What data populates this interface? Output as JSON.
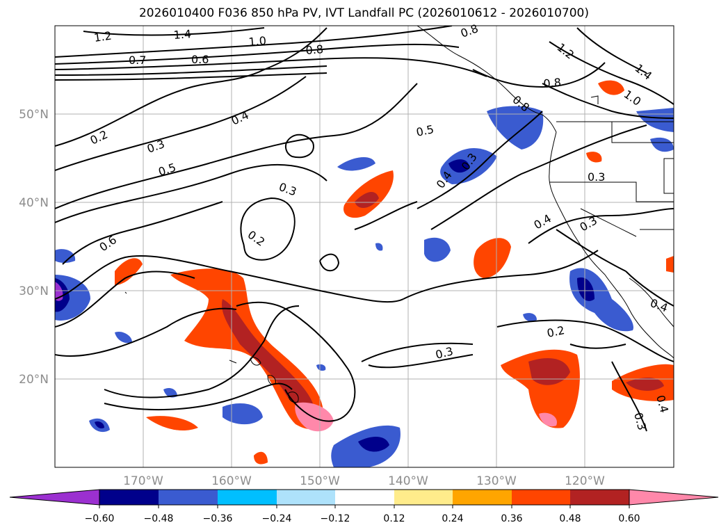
{
  "title": "2026010400 F036 850 hPa PV, IVT Landfall PC (2026010612 - 2026010700)",
  "lat_labels": [
    "50°N",
    "40°N",
    "30°N",
    "20°N"
  ],
  "lon_labels": [
    "170°W",
    "160°W",
    "150°W",
    "140°W",
    "130°W",
    "120°W"
  ],
  "contour_labels": [
    "1.2",
    "1.4",
    "1.0",
    "0.8",
    "0.7",
    "0.6",
    "0.8",
    "0.8",
    "1.2",
    "1.4",
    "1.0",
    "0.8",
    "0.2",
    "0.3",
    "0.4",
    "0.5",
    "0.3",
    "0.2",
    "0.6",
    "0.5",
    "0.3",
    "0.4",
    "0.3",
    "0.4",
    "0.3",
    "0.2",
    "0.3",
    "0.4",
    "0.3",
    "0.4"
  ],
  "colorbar": {
    "ticks": [
      "−0.60",
      "−0.48",
      "−0.36",
      "−0.24",
      "−0.12",
      "0.12",
      "0.24",
      "0.36",
      "0.48",
      "0.60"
    ],
    "colors": [
      "#9b30d0",
      "#00008b",
      "#3a5bd0",
      "#00bfff",
      "#aee2fb",
      "#ffffff",
      "#ffec8b",
      "#ffa500",
      "#ff4500",
      "#b22222",
      "#ff88aa",
      "#ff88aa"
    ]
  },
  "map_data": {
    "projection": "PlateCarree",
    "lon_range": [
      -180,
      -110
    ],
    "lat_range": [
      10,
      60
    ],
    "field_shaded": "IVT Landfall PC",
    "field_contoured": "850 hPa PV"
  }
}
